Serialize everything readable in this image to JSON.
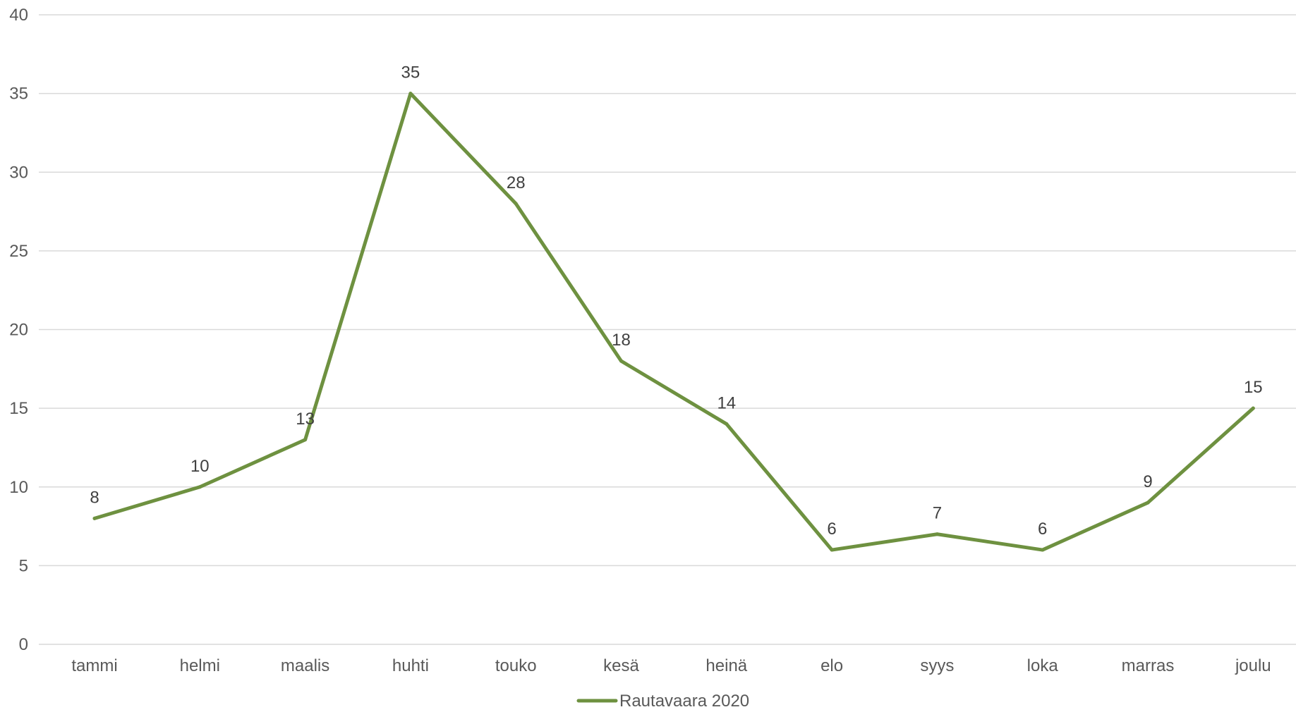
{
  "chart_data": {
    "type": "line",
    "categories": [
      "tammi",
      "helmi",
      "maalis",
      "huhti",
      "touko",
      "kesä",
      "heinä",
      "elo",
      "syys",
      "loka",
      "marras",
      "joulu"
    ],
    "series": [
      {
        "name": "Rautavaara 2020",
        "values": [
          8,
          10,
          13,
          35,
          28,
          18,
          14,
          6,
          7,
          6,
          9,
          15
        ],
        "color": "#6e9140"
      }
    ],
    "ylim": [
      0,
      40
    ],
    "yticks": [
      0,
      5,
      10,
      15,
      20,
      25,
      30,
      35,
      40
    ],
    "grid": true,
    "data_labels": true,
    "legend_position": "bottom",
    "gridline_color": "#d9d9d9",
    "text_color": "#595959"
  }
}
